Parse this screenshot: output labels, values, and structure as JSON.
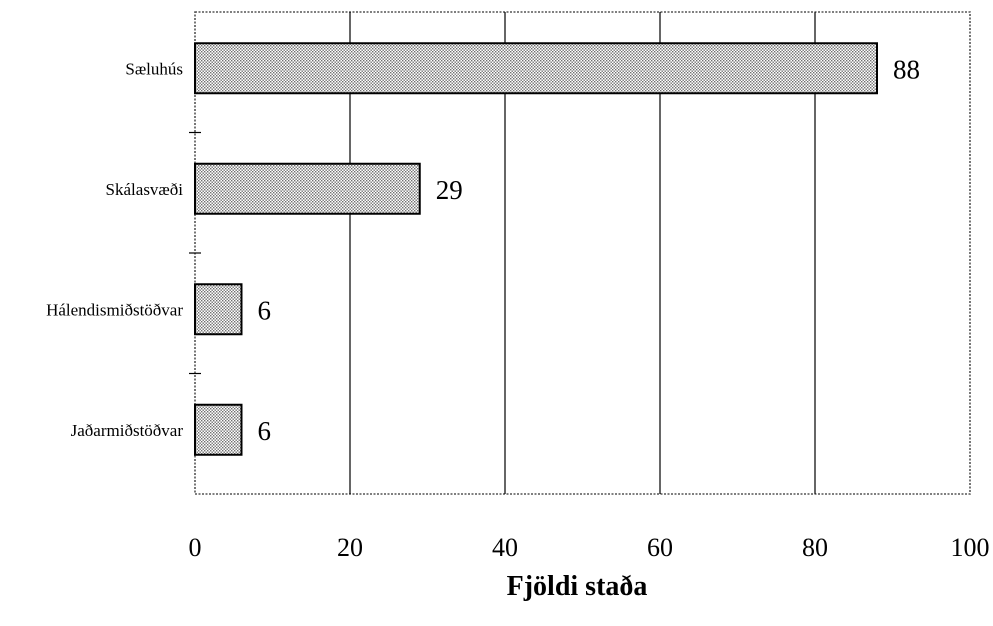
{
  "chart_data": {
    "type": "bar",
    "orientation": "horizontal",
    "categories": [
      "Sæluhús",
      "Skálasvæði",
      "Hálendismiðstöðvar",
      "Jaðarmiðstöðvar"
    ],
    "values": [
      88,
      29,
      6,
      6
    ],
    "data_labels": [
      "88",
      "29",
      "6",
      "6"
    ],
    "title": "",
    "xlabel": "Fjöldi staða",
    "ylabel": "",
    "xlim": [
      0,
      100
    ],
    "x_ticks": [
      0,
      20,
      40,
      60,
      80,
      100
    ],
    "x_tick_labels": [
      "0",
      "20",
      "40",
      "60",
      "80",
      "100"
    ],
    "grid": "vertical",
    "legend": "none",
    "bar_fill": "hatched gray",
    "colors": {
      "bar_fill": "#b5b5b5",
      "bar_stroke": "#000000",
      "grid": "#000000",
      "frame": "#555555",
      "background": "#ffffff"
    }
  }
}
